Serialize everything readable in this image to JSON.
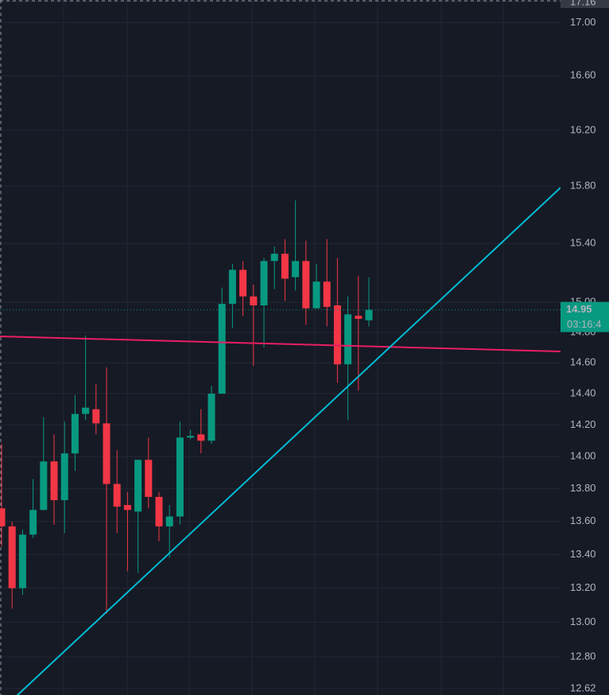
{
  "chart_data": {
    "type": "candlestick",
    "open": [
      13.68,
      13.57,
      13.2,
      13.52,
      13.67,
      13.97,
      13.73,
      14.02,
      14.27,
      14.3,
      14.21,
      13.83,
      13.7,
      13.66,
      13.98,
      13.75,
      13.57,
      13.63,
      14.12,
      14.14,
      14.1,
      14.4,
      14.99,
      15.22,
      15.04,
      14.98,
      15.28,
      15.33,
      15.17,
      15.28,
      14.96,
      15.14,
      14.98,
      14.59,
      14.91,
      14.88
    ],
    "high": [
      14.08,
      13.6,
      13.55,
      13.86,
      14.25,
      14.14,
      14.22,
      14.39,
      14.78,
      14.46,
      14.57,
      14.04,
      13.78,
      13.98,
      14.12,
      13.78,
      13.7,
      14.22,
      14.17,
      14.3,
      14.45,
      15.1,
      15.26,
      15.28,
      15.12,
      15.3,
      15.38,
      15.43,
      15.7,
      15.42,
      15.26,
      15.43,
      15.3,
      15.04,
      15.18,
      15.17
    ],
    "low": [
      13.45,
      13.08,
      13.16,
      13.5,
      13.67,
      13.58,
      13.53,
      13.91,
      14.23,
      14.14,
      13.05,
      13.53,
      13.3,
      13.29,
      13.68,
      13.48,
      13.38,
      13.58,
      14.11,
      14.02,
      14.08,
      14.4,
      14.83,
      14.91,
      14.58,
      14.7,
      15.09,
      15.01,
      15.08,
      14.85,
      14.96,
      14.84,
      14.47,
      14.23,
      14.42,
      14.84
    ],
    "close": [
      13.57,
      13.2,
      13.52,
      13.67,
      13.97,
      13.73,
      14.02,
      14.27,
      14.31,
      14.21,
      13.83,
      13.69,
      13.67,
      13.98,
      13.75,
      13.57,
      13.63,
      14.12,
      14.13,
      14.1,
      14.4,
      14.99,
      15.22,
      15.04,
      14.98,
      15.28,
      15.33,
      15.16,
      15.28,
      14.96,
      15.14,
      14.97,
      14.59,
      14.92,
      14.89,
      14.95
    ],
    "up_color": "#089981",
    "down_color": "#f23645",
    "log_scale": true,
    "grid": true,
    "ylim": [
      12.62,
      17.16
    ],
    "yticks": [
      17.16,
      {
        "value": 17,
        "label": "17.00"
      },
      {
        "value": 16.6,
        "label": "16.60"
      },
      {
        "value": 16.2,
        "label": "16.20"
      },
      {
        "value": 15.8,
        "label": "15.80"
      },
      {
        "value": 15.4,
        "label": "15.40"
      },
      {
        "value": 15,
        "label": "15.00"
      },
      {
        "value": 14.8,
        "label": "14.80"
      },
      {
        "value": 14.6,
        "label": "14.60"
      },
      {
        "value": 14.4,
        "label": "14.40"
      },
      {
        "value": 14.2,
        "label": "14.20"
      },
      {
        "value": 14,
        "label": "14.00"
      },
      {
        "value": 13.8,
        "label": "13.80"
      },
      {
        "value": 13.6,
        "label": "13.60"
      },
      {
        "value": 13.4,
        "label": "13.40"
      },
      {
        "value": 13.2,
        "label": "13.20"
      },
      {
        "value": 13,
        "label": "13.00"
      },
      {
        "value": 12.8,
        "label": "12.80"
      },
      12.62
    ],
    "last_price": 14.95,
    "countdown": "03:16:4"
  }
}
